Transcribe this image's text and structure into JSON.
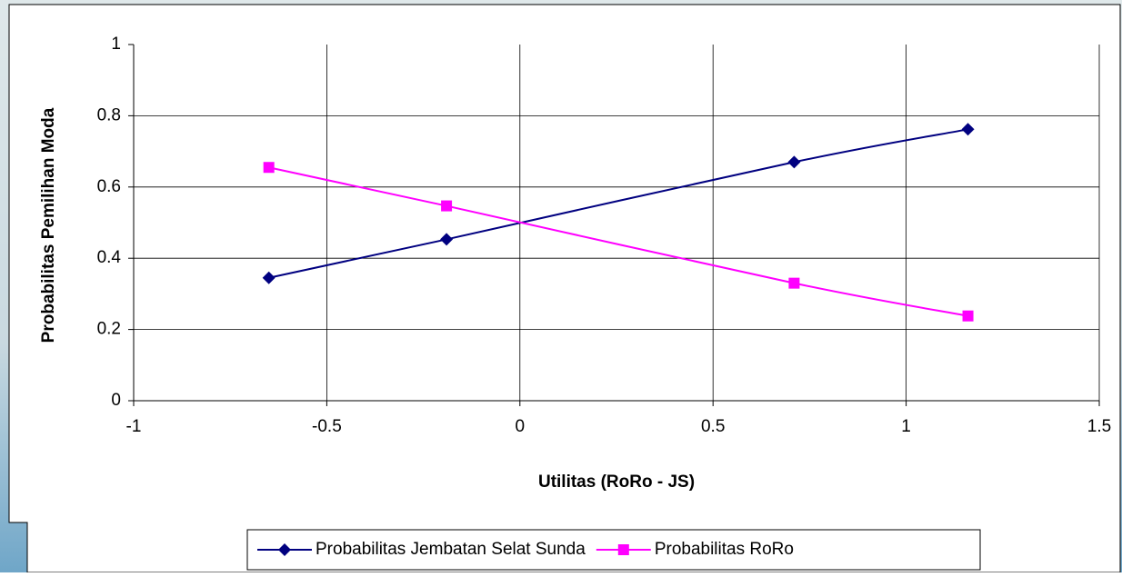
{
  "chart_data": {
    "type": "line",
    "x_label": "Utilitas (RoRo - JS)",
    "y_label": "Probabilitas Pemilihan Moda",
    "x": [
      -0.65,
      -0.19,
      0.71,
      1.16
    ],
    "series": [
      {
        "name": "Probabilitas Jembatan Selat Sunda",
        "color": "#000080",
        "marker": "diamond",
        "values": [
          0.345,
          0.453,
          0.67,
          0.762
        ]
      },
      {
        "name": "Probabilitas RoRo",
        "color": "#ff00ff",
        "marker": "square",
        "values": [
          0.655,
          0.547,
          0.33,
          0.238
        ]
      }
    ],
    "xlim": [
      -1,
      1.5
    ],
    "xticks": [
      -1,
      -0.5,
      0,
      0.5,
      1,
      1.5
    ],
    "ylim": [
      0,
      1
    ],
    "yticks": [
      0,
      0.2,
      0.4,
      0.6,
      0.8,
      1
    ],
    "grid": true,
    "smooth": true,
    "legend": "bottom"
  }
}
